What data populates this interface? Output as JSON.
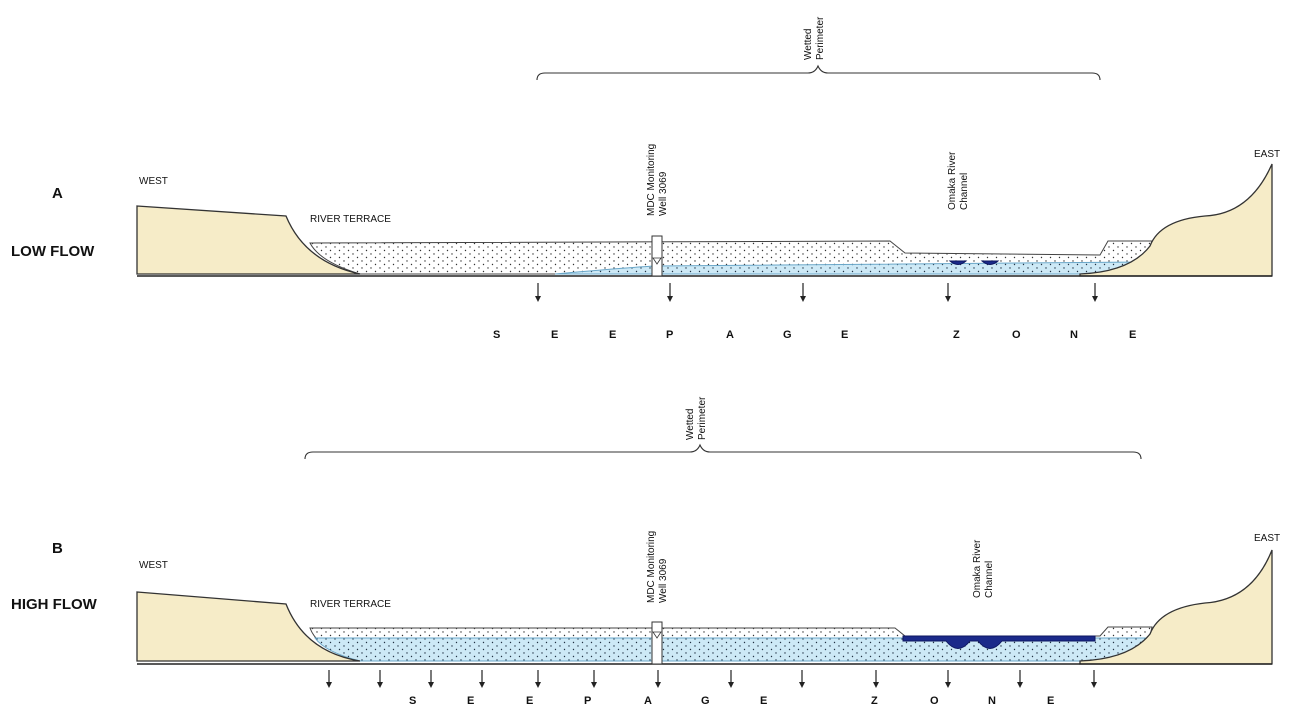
{
  "panel_a": {
    "letter": "A",
    "flow_label": "LOW FLOW",
    "west": "WEST",
    "east": "EAST",
    "terrace": "RIVER TERRACE",
    "well_line1": "MDC Monitoring",
    "well_line2": "Well 3069",
    "channel_line1": "Omaka River",
    "channel_line2": "Channel",
    "perimeter_line1": "Wetted",
    "perimeter_line2": "Perimeter",
    "seepage_letters": [
      "S",
      "E",
      "E",
      "P",
      "A",
      "G",
      "E",
      "Z",
      "O",
      "N",
      "E"
    ]
  },
  "panel_b": {
    "letter": "B",
    "flow_label": "HIGH FLOW",
    "west": "WEST",
    "east": "EAST",
    "terrace": "RIVER TERRACE",
    "well_line1": "MDC Monitoring",
    "well_line2": "Well 3069",
    "channel_line1": "Omaka River",
    "channel_line2": "Channel",
    "perimeter_line1": "Wetted",
    "perimeter_line2": "Perimeter",
    "seepage_letters": [
      "S",
      "E",
      "E",
      "P",
      "A",
      "G",
      "E",
      "Z",
      "O",
      "N",
      "E"
    ]
  },
  "colors": {
    "terrain": "#f6ecc8",
    "groundwater": "#cde9f6",
    "river_channel": "#1b2a8a"
  }
}
